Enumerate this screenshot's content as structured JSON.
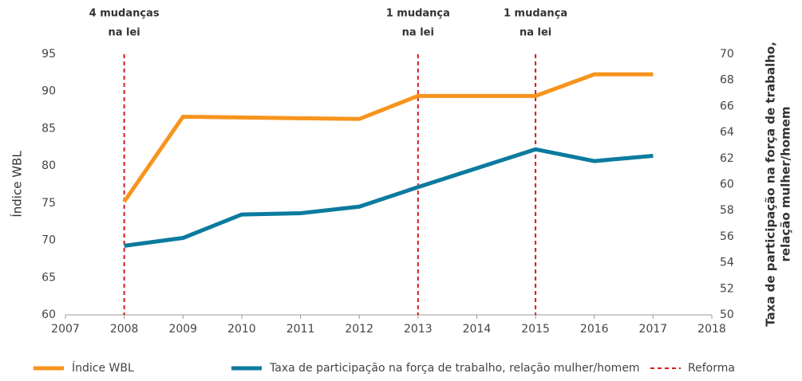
{
  "chart_data": {
    "type": "line",
    "y_label": "Índice WBL",
    "y2_label": [
      "Taxa de participação na força de trabalho,",
      "relação mulher/homem"
    ],
    "xlim": [
      2007,
      2018
    ],
    "xticks": [
      2007,
      2008,
      2009,
      2010,
      2011,
      2012,
      2013,
      2014,
      2015,
      2016,
      2017,
      2018
    ],
    "ylim": [
      60,
      95
    ],
    "yticks": [
      60,
      65,
      70,
      75,
      80,
      85,
      90,
      95
    ],
    "y2lim": [
      50,
      70
    ],
    "y2ticks": [
      50,
      52,
      54,
      56,
      58,
      60,
      62,
      64,
      66,
      68,
      70
    ],
    "grid": false,
    "legend": "bottom",
    "series": [
      {
        "name": "Índice WBL",
        "color": "#f7941d",
        "x": [
          2008,
          2009,
          2010,
          2011,
          2012,
          2013,
          2015,
          2016,
          2017
        ],
        "values": [
          75.2,
          86.6,
          86.5,
          86.4,
          86.3,
          89.4,
          89.4,
          92.3,
          92.3
        ]
      },
      {
        "name": "Taxa de participação na força de trabalho, relação mulher/homem",
        "color": "#0b7b9e",
        "axis": "y2",
        "x": [
          2008,
          2009,
          2010,
          2011,
          2012,
          2013,
          2015,
          2016,
          2017
        ],
        "values": [
          55.3,
          55.9,
          57.7,
          57.8,
          58.3,
          59.8,
          62.7,
          61.8,
          62.2
        ]
      }
    ],
    "reforms": {
      "name": "Reforma",
      "color": "#d7191c",
      "x": [
        2008,
        2013,
        2015
      ],
      "labels": [
        [
          "4 mudanças",
          "na lei"
        ],
        [
          "1 mudança",
          "na lei"
        ],
        [
          "1 mudança",
          "na lei"
        ]
      ]
    }
  }
}
